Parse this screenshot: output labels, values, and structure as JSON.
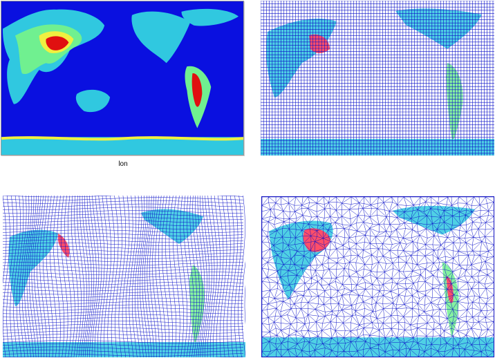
{
  "panels": [
    {
      "id": "p1",
      "name": "field-map-panel",
      "caption": "lon"
    },
    {
      "id": "p2",
      "name": "rectilinear-mesh-panel"
    },
    {
      "id": "p3",
      "name": "curvilinear-mesh-panel"
    },
    {
      "id": "p4",
      "name": "triangular-mesh-panel"
    }
  ],
  "colors": {
    "ocean": "#0a10e0",
    "mesh_line": "#0a10c8",
    "low": "#30c8e0",
    "mid": "#70f090",
    "high": "#f0f040",
    "peak": "#ff3050",
    "max": "#e01010"
  }
}
